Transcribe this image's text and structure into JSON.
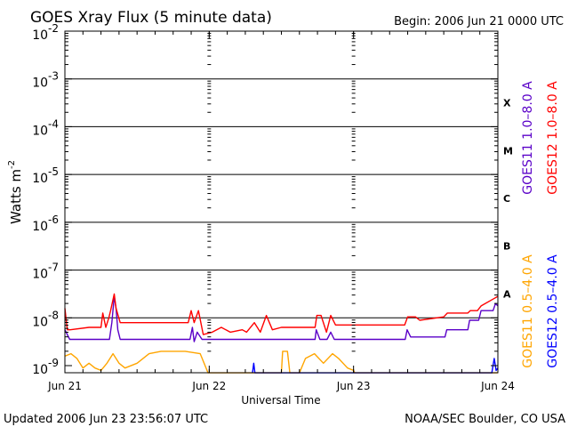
{
  "chart_data": {
    "type": "line",
    "title": "GOES Xray Flux (5 minute data)",
    "begin_label": "Begin:  2006 Jun 21 0000 UTC",
    "xlabel": "Universal Time",
    "ylabel": "Watts m",
    "ylabel_exp": "-2",
    "x_range_hours": [
      0,
      72
    ],
    "x_ticks": [
      {
        "hour": 0,
        "label": "Jun 21"
      },
      {
        "hour": 24,
        "label": "Jun 22"
      },
      {
        "hour": 48,
        "label": "Jun 23"
      },
      {
        "hour": 72,
        "label": "Jun 24"
      }
    ],
    "y_log_range": [
      -9,
      -2
    ],
    "y_ticks": [
      {
        "exp": -2,
        "base": "10",
        "power": "-2"
      },
      {
        "exp": -3,
        "base": "10",
        "power": "-3"
      },
      {
        "exp": -4,
        "base": "10",
        "power": "-4"
      },
      {
        "exp": -5,
        "base": "10",
        "power": "-5"
      },
      {
        "exp": -6,
        "base": "10",
        "power": "-6"
      },
      {
        "exp": -7,
        "base": "10",
        "power": "-7"
      },
      {
        "exp": -8,
        "base": "10",
        "power": "-8"
      },
      {
        "exp": -9,
        "base": "10",
        "power": "-9"
      }
    ],
    "class_lines_exp": [
      -3,
      -4,
      -5,
      -6,
      -7,
      -8
    ],
    "flare_classes": [
      {
        "label": "X",
        "exp": -3.5
      },
      {
        "label": "M",
        "exp": -4.5
      },
      {
        "label": "C",
        "exp": -5.5
      },
      {
        "label": "B",
        "exp": -6.5
      },
      {
        "label": "A",
        "exp": -7.5
      }
    ],
    "series": [
      {
        "name": "GOES11 1.0-8.0 A",
        "color": "#5a00c8",
        "points": [
          [
            0,
            -8.25
          ],
          [
            0.8,
            -8.45
          ],
          [
            1.5,
            -8.45
          ],
          [
            3,
            -8.45
          ],
          [
            4.5,
            -8.45
          ],
          [
            7.4,
            -8.45
          ],
          [
            7.8,
            -8.1
          ],
          [
            8.2,
            -7.55
          ],
          [
            8.5,
            -7.8
          ],
          [
            8.8,
            -8.25
          ],
          [
            9.2,
            -8.45
          ],
          [
            20.8,
            -8.45
          ],
          [
            21.2,
            -8.2
          ],
          [
            21.5,
            -8.5
          ],
          [
            22,
            -8.3
          ],
          [
            22.8,
            -8.45
          ],
          [
            24.5,
            -8.45
          ],
          [
            30,
            -8.45
          ],
          [
            36,
            -8.45
          ],
          [
            41.6,
            -8.45
          ],
          [
            41.8,
            -8.25
          ],
          [
            42.4,
            -8.45
          ],
          [
            43.6,
            -8.45
          ],
          [
            44.2,
            -8.3
          ],
          [
            44.8,
            -8.45
          ],
          [
            48,
            -8.45
          ],
          [
            56.6,
            -8.45
          ],
          [
            56.9,
            -8.25
          ],
          [
            57.5,
            -8.4
          ],
          [
            58.5,
            -8.4
          ],
          [
            63.2,
            -8.4
          ],
          [
            63.5,
            -8.25
          ],
          [
            67,
            -8.25
          ],
          [
            67.3,
            -8.05
          ],
          [
            68.8,
            -8.05
          ],
          [
            69.2,
            -7.85
          ],
          [
            71.2,
            -7.85
          ],
          [
            71.6,
            -7.7
          ],
          [
            72,
            -7.75
          ]
        ]
      },
      {
        "name": "GOES12 1.0-8.0 A",
        "color": "#ff0000",
        "points": [
          [
            0,
            -7.8
          ],
          [
            0.4,
            -8.25
          ],
          [
            0.9,
            -8.25
          ],
          [
            4,
            -8.2
          ],
          [
            6,
            -8.2
          ],
          [
            6.3,
            -7.9
          ],
          [
            6.8,
            -8.2
          ],
          [
            7.3,
            -8.0
          ],
          [
            7.6,
            -7.85
          ],
          [
            8.2,
            -7.5
          ],
          [
            8.5,
            -7.8
          ],
          [
            9.2,
            -8.1
          ],
          [
            10.5,
            -8.1
          ],
          [
            20.5,
            -8.1
          ],
          [
            21,
            -7.85
          ],
          [
            21.5,
            -8.1
          ],
          [
            22.2,
            -7.85
          ],
          [
            23,
            -8.35
          ],
          [
            24.5,
            -8.3
          ],
          [
            26,
            -8.2
          ],
          [
            27.5,
            -8.3
          ],
          [
            29.5,
            -8.25
          ],
          [
            30.2,
            -8.3
          ],
          [
            31.5,
            -8.1
          ],
          [
            32.5,
            -8.3
          ],
          [
            33.5,
            -7.95
          ],
          [
            34.5,
            -8.25
          ],
          [
            36,
            -8.2
          ],
          [
            37.2,
            -8.2
          ],
          [
            41.6,
            -8.2
          ],
          [
            41.9,
            -7.95
          ],
          [
            42.6,
            -7.95
          ],
          [
            43.5,
            -8.3
          ],
          [
            44.2,
            -7.95
          ],
          [
            45,
            -8.15
          ],
          [
            48,
            -8.15
          ],
          [
            56.5,
            -8.15
          ],
          [
            57,
            -7.98
          ],
          [
            58.3,
            -7.98
          ],
          [
            59,
            -8.05
          ],
          [
            63,
            -7.98
          ],
          [
            63.6,
            -7.9
          ],
          [
            65.8,
            -7.9
          ],
          [
            67,
            -7.9
          ],
          [
            67.4,
            -7.85
          ],
          [
            68.6,
            -7.85
          ],
          [
            69.2,
            -7.75
          ],
          [
            71.3,
            -7.6
          ],
          [
            72,
            -7.55
          ]
        ]
      },
      {
        "name": "GOES11 0.5-4.0 A",
        "color": "#ffa500",
        "points": [
          [
            0,
            -8.8
          ],
          [
            1,
            -8.75
          ],
          [
            2,
            -8.85
          ],
          [
            3,
            -9.05
          ],
          [
            4,
            -8.95
          ],
          [
            5,
            -9.05
          ],
          [
            6,
            -9.1
          ],
          [
            7,
            -8.95
          ],
          [
            8,
            -8.75
          ],
          [
            9,
            -8.95
          ],
          [
            10,
            -9.05
          ],
          [
            12,
            -8.95
          ],
          [
            14,
            -8.75
          ],
          [
            16,
            -8.7
          ],
          [
            20,
            -8.7
          ],
          [
            22.5,
            -8.75
          ],
          [
            23.8,
            -9.15
          ],
          [
            24,
            -9.15
          ],
          [
            36,
            -9.15
          ],
          [
            36.2,
            -8.7
          ],
          [
            37,
            -8.7
          ],
          [
            37.4,
            -9.15
          ],
          [
            39,
            -9.15
          ],
          [
            40,
            -8.85
          ],
          [
            41.5,
            -8.75
          ],
          [
            43,
            -8.95
          ],
          [
            44.5,
            -8.75
          ],
          [
            45.5,
            -8.85
          ],
          [
            47,
            -9.05
          ],
          [
            48,
            -9.1
          ],
          [
            48.2,
            -9.15
          ],
          [
            72,
            -9.15
          ]
        ]
      },
      {
        "name": "GOES12 0.5-4.0 A",
        "color": "#0000ff",
        "points": [
          [
            31.2,
            -9.15
          ],
          [
            31.4,
            -8.95
          ],
          [
            31.6,
            -9.15
          ],
          [
            71,
            -9.15
          ],
          [
            71.4,
            -8.85
          ],
          [
            71.7,
            -9.1
          ],
          [
            72,
            -9.05
          ]
        ]
      }
    ],
    "legend": [
      {
        "label": "GOES11  1.0–8.0 A",
        "color": "#5a00c8"
      },
      {
        "label": "GOES12  1.0–8.0 A",
        "color": "#ff0000"
      },
      {
        "label": "GOES11  0.5–4.0 A",
        "color": "#ffa500"
      },
      {
        "label": "GOES12  0.5–4.0 A",
        "color": "#0000ff"
      }
    ]
  },
  "footer": {
    "updated": "Updated 2006 Jun 23 23:56:07 UTC",
    "source": "NOAA/SEC Boulder, CO USA"
  }
}
